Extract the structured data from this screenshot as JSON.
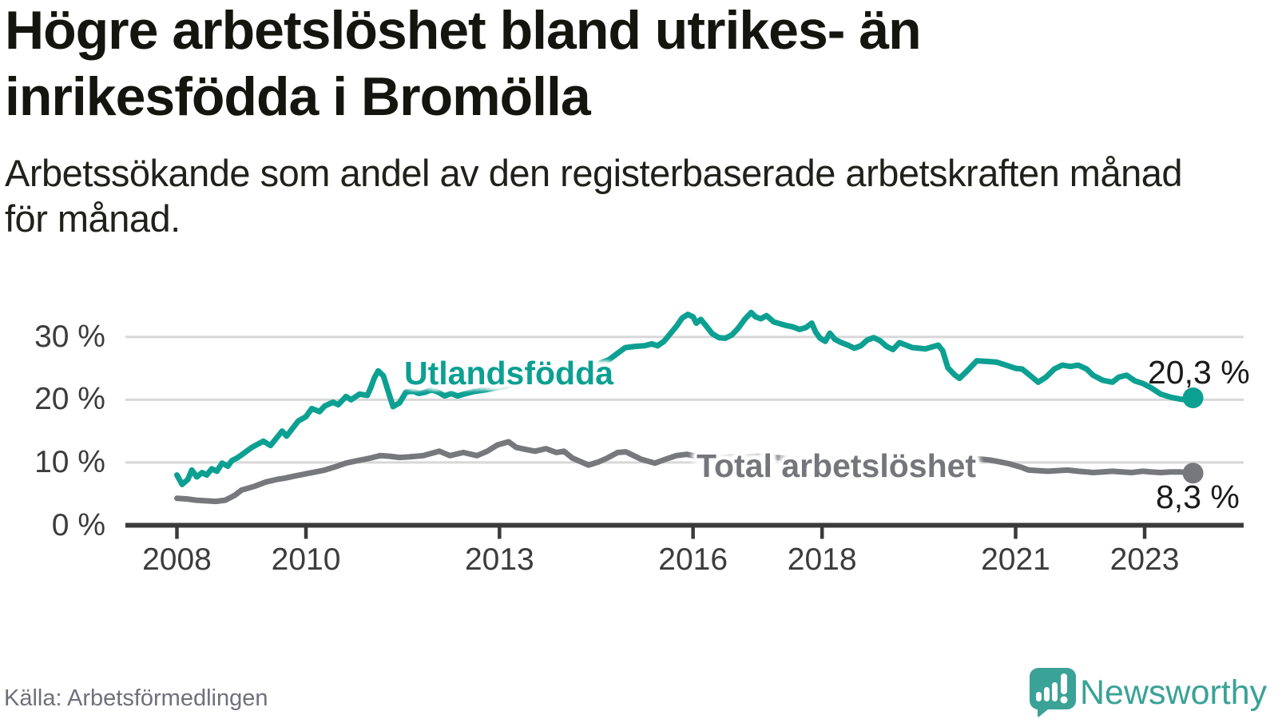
{
  "header": {
    "title_line1": "Högre arbetslöshet bland utrikes- än",
    "title_line2": "inrikesfödda i Bromölla",
    "subtitle_line1": "Arbetssökande som andel av den registerbaserade arbetskraften månad",
    "subtitle_line2": "för månad."
  },
  "chart_data": {
    "type": "line",
    "x_unit": "decimal_year",
    "xlim": [
      2007.2,
      2024.45
    ],
    "ylim": [
      0,
      36
    ],
    "grid": "horizontal",
    "x_ticks": [
      {
        "value": 2008,
        "label": "2008"
      },
      {
        "value": 2010,
        "label": "2010"
      },
      {
        "value": 2013,
        "label": "2013"
      },
      {
        "value": 2016,
        "label": "2016"
      },
      {
        "value": 2018,
        "label": "2018"
      },
      {
        "value": 2021,
        "label": "2021"
      },
      {
        "value": 2023,
        "label": "2023"
      }
    ],
    "y_ticks": [
      {
        "value": 0,
        "label": "0 %"
      },
      {
        "value": 10,
        "label": "10 %"
      },
      {
        "value": 20,
        "label": "20 %"
      },
      {
        "value": 30,
        "label": "30 %"
      }
    ],
    "series": [
      {
        "name": "Total arbetslöshet",
        "color": "#77787c",
        "end_value": 8.3,
        "end_label": "8,3 %",
        "points": [
          [
            2008.0,
            4.3
          ],
          [
            2008.15,
            4.2
          ],
          [
            2008.3,
            4.0
          ],
          [
            2008.45,
            3.9
          ],
          [
            2008.6,
            3.8
          ],
          [
            2008.75,
            4.0
          ],
          [
            2008.9,
            4.8
          ],
          [
            2009.0,
            5.6
          ],
          [
            2009.2,
            6.2
          ],
          [
            2009.38,
            6.9
          ],
          [
            2009.55,
            7.3
          ],
          [
            2009.67,
            7.5
          ],
          [
            2009.85,
            7.9
          ],
          [
            2010.0,
            8.2
          ],
          [
            2010.15,
            8.5
          ],
          [
            2010.29,
            8.8
          ],
          [
            2010.45,
            9.3
          ],
          [
            2010.62,
            9.9
          ],
          [
            2010.8,
            10.3
          ],
          [
            2011.0,
            10.7
          ],
          [
            2011.15,
            11.1
          ],
          [
            2011.3,
            11.0
          ],
          [
            2011.45,
            10.8
          ],
          [
            2011.6,
            10.9
          ],
          [
            2011.82,
            11.1
          ],
          [
            2012.07,
            11.8
          ],
          [
            2012.23,
            11.1
          ],
          [
            2012.44,
            11.6
          ],
          [
            2012.65,
            11.1
          ],
          [
            2012.81,
            11.8
          ],
          [
            2012.97,
            12.8
          ],
          [
            2013.14,
            13.3
          ],
          [
            2013.26,
            12.4
          ],
          [
            2013.4,
            12.1
          ],
          [
            2013.55,
            11.8
          ],
          [
            2013.72,
            12.2
          ],
          [
            2013.88,
            11.6
          ],
          [
            2014.0,
            11.8
          ],
          [
            2014.13,
            10.7
          ],
          [
            2014.38,
            9.6
          ],
          [
            2014.54,
            10.1
          ],
          [
            2014.67,
            10.7
          ],
          [
            2014.83,
            11.6
          ],
          [
            2014.96,
            11.7
          ],
          [
            2015.08,
            11.1
          ],
          [
            2015.2,
            10.5
          ],
          [
            2015.41,
            9.9
          ],
          [
            2015.57,
            10.5
          ],
          [
            2015.74,
            11.1
          ],
          [
            2015.9,
            11.3
          ],
          [
            2016.05,
            11.0
          ],
          [
            2016.2,
            10.6
          ],
          [
            2016.4,
            10.7
          ],
          [
            2016.6,
            10.9
          ],
          [
            2016.8,
            10.8
          ],
          [
            2017.0,
            11.0
          ],
          [
            2017.25,
            10.8
          ],
          [
            2017.5,
            10.6
          ],
          [
            2017.75,
            10.4
          ],
          [
            2018.0,
            10.3
          ],
          [
            2018.25,
            10.4
          ],
          [
            2018.5,
            10.2
          ],
          [
            2018.75,
            10.0
          ],
          [
            2019.0,
            9.9
          ],
          [
            2019.25,
            10.0
          ],
          [
            2019.5,
            9.9
          ],
          [
            2019.75,
            9.8
          ],
          [
            2020.0,
            9.7
          ],
          [
            2020.2,
            10.2
          ],
          [
            2020.4,
            10.6
          ],
          [
            2020.6,
            10.4
          ],
          [
            2020.75,
            10.1
          ],
          [
            2020.9,
            9.8
          ],
          [
            2021.1,
            9.2
          ],
          [
            2021.2,
            8.8
          ],
          [
            2021.35,
            8.7
          ],
          [
            2021.5,
            8.6
          ],
          [
            2021.65,
            8.7
          ],
          [
            2021.8,
            8.8
          ],
          [
            2021.97,
            8.6
          ],
          [
            2022.1,
            8.5
          ],
          [
            2022.2,
            8.4
          ],
          [
            2022.35,
            8.5
          ],
          [
            2022.5,
            8.6
          ],
          [
            2022.65,
            8.5
          ],
          [
            2022.8,
            8.4
          ],
          [
            2022.97,
            8.6
          ],
          [
            2023.1,
            8.5
          ],
          [
            2023.25,
            8.4
          ],
          [
            2023.4,
            8.5
          ],
          [
            2023.55,
            8.5
          ],
          [
            2023.65,
            8.4
          ],
          [
            2023.75,
            8.3
          ]
        ]
      },
      {
        "name": "Utlandsfödda",
        "color": "#0ca092",
        "end_value": 20.3,
        "end_label": "20,3 %",
        "points": [
          [
            2008.0,
            8.0
          ],
          [
            2008.08,
            6.5
          ],
          [
            2008.17,
            7.3
          ],
          [
            2008.23,
            8.8
          ],
          [
            2008.31,
            7.7
          ],
          [
            2008.39,
            8.4
          ],
          [
            2008.46,
            8.0
          ],
          [
            2008.54,
            9.0
          ],
          [
            2008.62,
            8.6
          ],
          [
            2008.7,
            9.9
          ],
          [
            2008.79,
            9.4
          ],
          [
            2008.85,
            10.3
          ],
          [
            2008.93,
            10.7
          ],
          [
            2009.0,
            11.2
          ],
          [
            2009.16,
            12.4
          ],
          [
            2009.34,
            13.4
          ],
          [
            2009.45,
            12.7
          ],
          [
            2009.63,
            15.0
          ],
          [
            2009.7,
            14.2
          ],
          [
            2009.88,
            16.6
          ],
          [
            2010.0,
            17.3
          ],
          [
            2010.09,
            18.6
          ],
          [
            2010.21,
            18.1
          ],
          [
            2010.29,
            19.0
          ],
          [
            2010.42,
            19.6
          ],
          [
            2010.5,
            19.2
          ],
          [
            2010.62,
            20.5
          ],
          [
            2010.7,
            20.0
          ],
          [
            2010.83,
            20.9
          ],
          [
            2010.95,
            20.7
          ],
          [
            2011.0,
            21.8
          ],
          [
            2011.06,
            23.5
          ],
          [
            2011.12,
            24.6
          ],
          [
            2011.2,
            23.8
          ],
          [
            2011.27,
            21.5
          ],
          [
            2011.35,
            18.9
          ],
          [
            2011.45,
            19.5
          ],
          [
            2011.55,
            21.2
          ],
          [
            2011.65,
            21.4
          ],
          [
            2011.75,
            21.0
          ],
          [
            2011.85,
            21.2
          ],
          [
            2011.95,
            21.6
          ],
          [
            2012.05,
            21.2
          ],
          [
            2012.15,
            20.6
          ],
          [
            2012.25,
            21.0
          ],
          [
            2012.35,
            20.6
          ],
          [
            2012.45,
            20.9
          ],
          [
            2012.6,
            21.3
          ],
          [
            2012.8,
            21.6
          ],
          [
            2013.0,
            22.0
          ],
          [
            2013.25,
            22.5
          ],
          [
            2013.5,
            23.0
          ],
          [
            2013.75,
            23.5
          ],
          [
            2014.0,
            24.1
          ],
          [
            2014.25,
            24.8
          ],
          [
            2014.5,
            25.6
          ],
          [
            2014.7,
            26.4
          ],
          [
            2014.83,
            27.4
          ],
          [
            2014.95,
            28.3
          ],
          [
            2015.1,
            28.5
          ],
          [
            2015.25,
            28.6
          ],
          [
            2015.36,
            28.9
          ],
          [
            2015.45,
            28.6
          ],
          [
            2015.55,
            29.3
          ],
          [
            2015.67,
            30.8
          ],
          [
            2015.75,
            31.8
          ],
          [
            2015.83,
            33.0
          ],
          [
            2015.92,
            33.6
          ],
          [
            2016.0,
            33.2
          ],
          [
            2016.05,
            32.2
          ],
          [
            2016.12,
            32.8
          ],
          [
            2016.2,
            31.8
          ],
          [
            2016.3,
            30.5
          ],
          [
            2016.4,
            29.9
          ],
          [
            2016.5,
            29.8
          ],
          [
            2016.6,
            30.3
          ],
          [
            2016.7,
            31.4
          ],
          [
            2016.8,
            32.8
          ],
          [
            2016.9,
            33.9
          ],
          [
            2016.97,
            33.2
          ],
          [
            2017.05,
            32.9
          ],
          [
            2017.14,
            33.4
          ],
          [
            2017.25,
            32.4
          ],
          [
            2017.35,
            32.1
          ],
          [
            2017.45,
            31.8
          ],
          [
            2017.55,
            31.6
          ],
          [
            2017.65,
            31.2
          ],
          [
            2017.75,
            31.5
          ],
          [
            2017.84,
            32.2
          ],
          [
            2017.9,
            30.8
          ],
          [
            2017.97,
            29.8
          ],
          [
            2018.05,
            29.3
          ],
          [
            2018.12,
            30.6
          ],
          [
            2018.2,
            29.6
          ],
          [
            2018.3,
            29.1
          ],
          [
            2018.4,
            28.7
          ],
          [
            2018.5,
            28.2
          ],
          [
            2018.6,
            28.6
          ],
          [
            2018.7,
            29.5
          ],
          [
            2018.8,
            29.9
          ],
          [
            2018.9,
            29.4
          ],
          [
            2019.0,
            28.5
          ],
          [
            2019.1,
            28.0
          ],
          [
            2019.2,
            29.1
          ],
          [
            2019.3,
            28.7
          ],
          [
            2019.4,
            28.3
          ],
          [
            2019.5,
            28.2
          ],
          [
            2019.6,
            28.1
          ],
          [
            2019.7,
            28.4
          ],
          [
            2019.8,
            28.7
          ],
          [
            2019.87,
            27.8
          ],
          [
            2019.95,
            25.1
          ],
          [
            2020.05,
            24.0
          ],
          [
            2020.13,
            23.4
          ],
          [
            2020.25,
            24.6
          ],
          [
            2020.4,
            26.2
          ],
          [
            2020.55,
            26.1
          ],
          [
            2020.7,
            26.0
          ],
          [
            2020.85,
            25.5
          ],
          [
            2021.0,
            25.0
          ],
          [
            2021.1,
            24.9
          ],
          [
            2021.22,
            23.9
          ],
          [
            2021.35,
            22.8
          ],
          [
            2021.47,
            23.6
          ],
          [
            2021.6,
            24.9
          ],
          [
            2021.72,
            25.5
          ],
          [
            2021.85,
            25.3
          ],
          [
            2021.97,
            25.5
          ],
          [
            2022.1,
            24.9
          ],
          [
            2022.2,
            23.9
          ],
          [
            2022.35,
            23.1
          ],
          [
            2022.5,
            22.8
          ],
          [
            2022.6,
            23.6
          ],
          [
            2022.72,
            23.9
          ],
          [
            2022.85,
            23.0
          ],
          [
            2022.97,
            22.6
          ],
          [
            2023.1,
            21.9
          ],
          [
            2023.25,
            20.9
          ],
          [
            2023.4,
            20.4
          ],
          [
            2023.55,
            20.1
          ],
          [
            2023.65,
            20.0
          ],
          [
            2023.75,
            20.3
          ]
        ]
      }
    ]
  },
  "colors": {
    "accent_teal": "#0ca092",
    "series_gray": "#77787c",
    "grid": "#d8d8d8",
    "axis": "#3a3a3a",
    "brand_teal": "#3aa296"
  },
  "footer": {
    "source": "Källa: Arbetsförmedlingen",
    "brand": "Newsworthy"
  }
}
